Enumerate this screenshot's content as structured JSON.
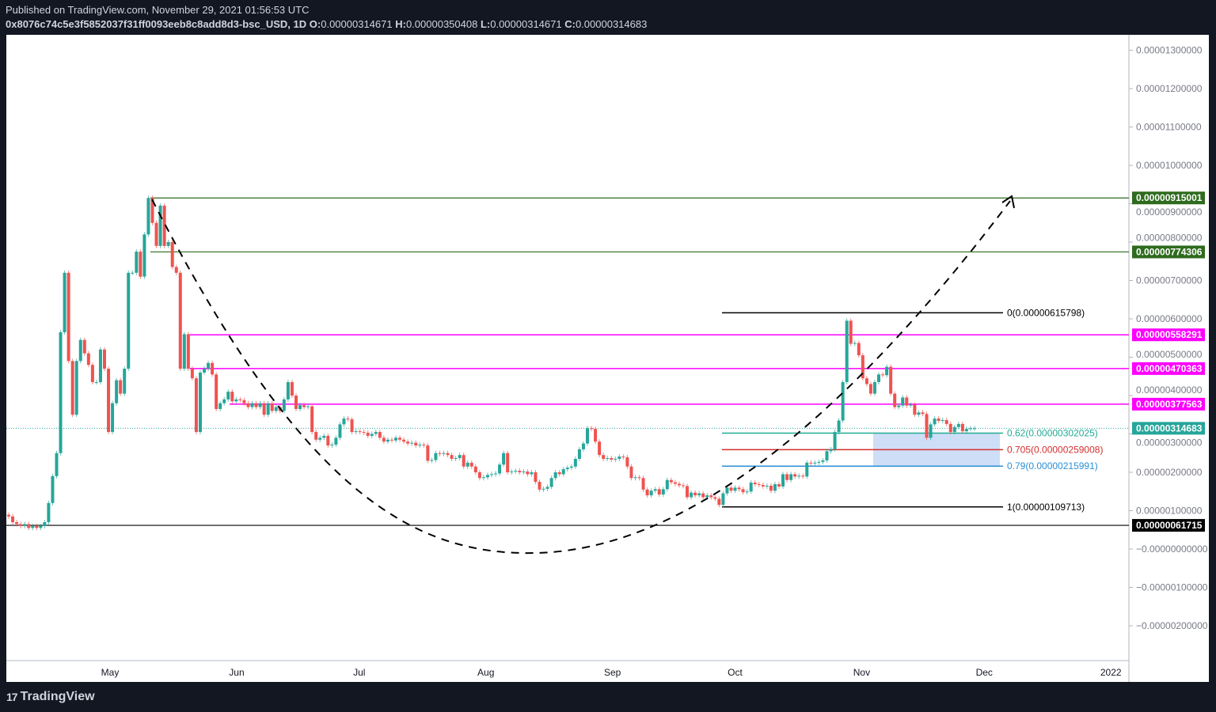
{
  "header": {
    "published": "Published on TradingView.com, November 29, 2021 01:56:53 UTC",
    "symbol": "0x8076c74c5e3f5852037f31ff0093eeb8c8add8d3-bsc_USD, 1D",
    "open_label": "O:",
    "open": "0.00000314671",
    "high_label": "H:",
    "high": "0.00000350408",
    "low_label": "L:",
    "low": "0.00000314671",
    "close_label": "C:",
    "close": "0.00000314683"
  },
  "footer": {
    "logo_text": "TradingView",
    "logo_mark": "17"
  },
  "colors": {
    "up": "#26a69a",
    "down": "#ef5350",
    "green_level": "#2e6b1e",
    "magenta_level": "#ff00ff",
    "last_price": "#26a69a",
    "fib_0_62": "#22ab94",
    "fib_0_705": "#d32f2f",
    "fib_0_79": "#2b8fd6",
    "zone": "#c5d8f5"
  },
  "chart_data": {
    "type": "candlestick",
    "interval": "1D",
    "start_date": "2021-04-06",
    "end_date": "2021-11-29",
    "ylim": [
      -2.7e-06,
      1.35e-05
    ],
    "grid": false,
    "x_ticks": [
      {
        "label": "May",
        "date": "2021-05-01"
      },
      {
        "label": "Jun",
        "date": "2021-06-01"
      },
      {
        "label": "Jul",
        "date": "2021-07-01"
      },
      {
        "label": "Aug",
        "date": "2021-08-01"
      },
      {
        "label": "Sep",
        "date": "2021-09-01"
      },
      {
        "label": "Oct",
        "date": "2021-10-01"
      },
      {
        "label": "Nov",
        "date": "2021-11-01"
      },
      {
        "label": "Dec",
        "date": "2021-12-01"
      },
      {
        "label": "2022",
        "date": "2022-01-01"
      }
    ],
    "y_ticks": [
      {
        "label": "0.00001300000",
        "value": 1.3e-05
      },
      {
        "label": "0.00001200000",
        "value": 1.2e-05
      },
      {
        "label": "0.00001100000",
        "value": 1.1e-05
      },
      {
        "label": "0.00001000000",
        "value": 1e-05
      },
      {
        "label": "0.00000900000",
        "value": 9e-06
      },
      {
        "label": "0.00000800000",
        "value": 8e-06
      },
      {
        "label": "0.00000700000",
        "value": 7e-06
      },
      {
        "label": "0.00000600000",
        "value": 6e-06
      },
      {
        "label": "0.00000500000",
        "value": 5e-06
      },
      {
        "label": "0.00000400000",
        "value": 4e-06
      },
      {
        "label": "0.00000300000",
        "value": 3e-06
      },
      {
        "label": "0.00000200000",
        "value": 2e-06
      },
      {
        "label": "0.00000100000",
        "value": 1e-06
      },
      {
        "label": "−0.00000000000",
        "value": 0
      },
      {
        "label": "−0.00000100000",
        "value": -1e-06
      },
      {
        "label": "−0.00000200000",
        "value": -2e-06
      }
    ],
    "close": [
      8.5e-07,
      7e-07,
      6.5e-07,
      6e-07,
      6.5e-07,
      5.5e-07,
      6e-07,
      5.5e-07,
      6e-07,
      7e-07,
      1.2e-06,
      1.9e-06,
      2.5e-06,
      5.65e-06,
      7.2e-06,
      4.9e-06,
      3.5e-06,
      4.9e-06,
      5.45e-06,
      5.1e-06,
      4.8e-06,
      4.35e-06,
      4.35e-06,
      5.2e-06,
      4.7e-06,
      3.05e-06,
      3.8e-06,
      4.4e-06,
      4.05e-06,
      4.7e-06,
      7.2e-06,
      7.2e-06,
      7.75e-06,
      7.1e-06,
      8.2e-06,
      9.15e-06,
      8.5e-06,
      7.9e-06,
      8.95e-06,
      7.9e-06,
      8e-06,
      7.35e-06,
      7.2e-06,
      4.7e-06,
      5.6e-06,
      4.7e-06,
      4.45e-06,
      3.05e-06,
      4.6e-06,
      4.7e-06,
      4.85e-06,
      4.55e-06,
      3.65e-06,
      3.8e-06,
      3.9e-06,
      4.1e-06,
      3.85e-06,
      3.9e-06,
      3.88e-06,
      3.8e-06,
      3.7e-06,
      3.8e-06,
      3.7e-06,
      3.8e-06,
      3.5e-06,
      3.8e-06,
      3.6e-06,
      3.7e-06,
      3.6e-06,
      3.9e-06,
      4.35e-06,
      4e-06,
      3.65e-06,
      3.75e-06,
      3.7e-06,
      3.72e-06,
      3.05e-06,
      2.85e-06,
      2.9e-06,
      2.95e-06,
      2.7e-06,
      2.72e-06,
      2.9e-06,
      3.25e-06,
      3.4e-06,
      3.38e-06,
      3.05e-06,
      3.07e-06,
      3.05e-06,
      3.03e-06,
      2.95e-06,
      3e-06,
      3.05e-06,
      2.9e-06,
      2.8e-06,
      2.85e-06,
      2.83e-06,
      2.9e-06,
      2.85e-06,
      2.8e-06,
      2.75e-06,
      2.77e-06,
      2.7e-06,
      2.72e-06,
      2.7e-06,
      2.3e-06,
      2.32e-06,
      2.5e-06,
      2.48e-06,
      2.5e-06,
      2.45e-06,
      2.35e-06,
      2.37e-06,
      2.45e-06,
      2.15e-06,
      2.25e-06,
      2.15e-06,
      2e-06,
      1.85e-06,
      1.87e-06,
      1.93e-06,
      1.95e-06,
      1.97e-06,
      2.2e-06,
      2.5e-06,
      2e-06,
      2.02e-06,
      2.04e-06,
      2e-06,
      2.02e-06,
      1.95e-06,
      2e-06,
      1.75e-06,
      1.55e-06,
      1.57e-06,
      1.62e-06,
      1.85e-06,
      2e-06,
      1.95e-06,
      2.08e-06,
      2.12e-06,
      2.15e-06,
      2.35e-06,
      2.6e-06,
      2.75e-06,
      3.15e-06,
      3.13e-06,
      2.8e-06,
      2.45e-06,
      2.35e-06,
      2.37e-06,
      2.33e-06,
      2.35e-06,
      2.41e-06,
      2.39e-06,
      2.15e-06,
      1.85e-06,
      1.87e-06,
      1.85e-06,
      1.55e-06,
      1.4e-06,
      1.52e-06,
      1.56e-06,
      1.42e-06,
      1.56e-06,
      1.8e-06,
      1.74e-06,
      1.7e-06,
      1.66e-06,
      1.64e-06,
      1.35e-06,
      1.47e-06,
      1.4e-06,
      1.45e-06,
      1.35e-06,
      1.4e-06,
      1.35e-06,
      1.31e-06,
      1.15e-06,
      1.45e-06,
      1.6e-06,
      1.52e-06,
      1.6e-06,
      1.56e-06,
      1.48e-06,
      1.5e-06,
      1.73e-06,
      1.69e-06,
      1.67e-06,
      1.63e-06,
      1.65e-06,
      1.52e-06,
      1.69e-06,
      1.63e-06,
      1.95e-06,
      1.8e-06,
      1.95e-06,
      1.89e-06,
      1.91e-06,
      1.89e-06,
      2.25e-06,
      2.23e-06,
      2.25e-06,
      2.27e-06,
      2.31e-06,
      2.55e-06,
      2.6e-06,
      3.05e-06,
      3.35e-06,
      4.35e-06,
      5.95e-06,
      5.35e-06,
      5.37e-06,
      5.05e-06,
      4.45e-06,
      4.3e-06,
      4.05e-06,
      4.35e-06,
      4.55e-06,
      4.53e-06,
      4.75e-06,
      4.05e-06,
      3.7e-06,
      3.74e-06,
      3.95e-06,
      3.74e-06,
      3.76e-06,
      3.5e-06,
      3.56e-06,
      3.52e-06,
      2.9e-06,
      3.25e-06,
      3.4e-06,
      3.34e-06,
      3.36e-06,
      3.26e-06,
      3.05e-06,
      3.18e-06,
      3.26e-06,
      3.07e-06,
      3.13e-06,
      3.14671e-06,
      3.14683e-06
    ],
    "levels": [
      {
        "label": "0.00000915001",
        "value": 9.15001e-06,
        "color": "#2e6b1e"
      },
      {
        "label": "0.00000774306",
        "value": 7.74306e-06,
        "color": "#2e6b1e"
      },
      {
        "label": "0.00000558291",
        "value": 5.58291e-06,
        "color": "#ff00ff"
      },
      {
        "label": "0.00000470363",
        "value": 4.70363e-06,
        "color": "#ff00ff"
      },
      {
        "label": "0.00000377563",
        "value": 3.77563e-06,
        "color": "#ff00ff"
      },
      {
        "label": "0.00000314683",
        "value": 3.14683e-06,
        "color": "#26a69a"
      },
      {
        "label": "0.00000061715",
        "value": 6.1715e-07,
        "color": "#000000"
      }
    ],
    "fib": [
      {
        "label": "0(0.00000615798)",
        "value": 6.15798e-06,
        "color": "#000000"
      },
      {
        "label": "0.62(0.00000302025)",
        "value": 3.02025e-06,
        "color": "#22ab94"
      },
      {
        "label": "0.705(0.00000259008)",
        "value": 2.59008e-06,
        "color": "#d32f2f"
      },
      {
        "label": "0.79(0.00000215991)",
        "value": 2.15991e-06,
        "color": "#2b8fd6"
      },
      {
        "label": "1(0.00000109713)",
        "value": 1.09713e-06,
        "color": "#000000"
      }
    ]
  }
}
